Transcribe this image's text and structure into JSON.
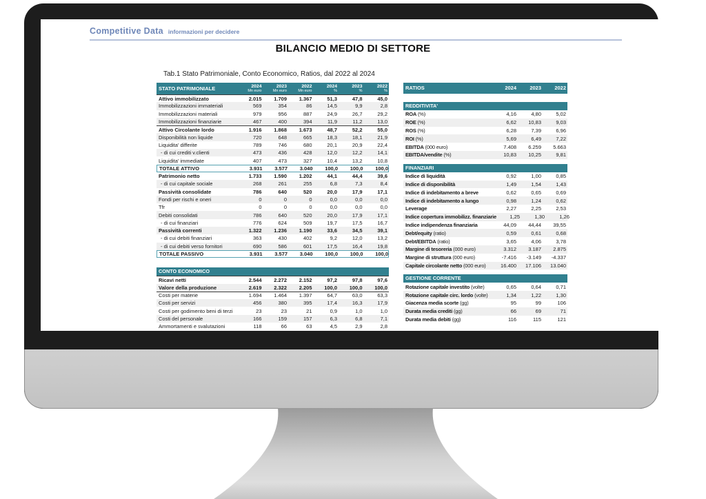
{
  "colors": {
    "accent_teal": "#31808F",
    "stripe": "#EFEFEF",
    "logo_blue": "#6F87B8",
    "bezel_black": "#1D1D1D",
    "chin_gray": "#C7C7C7",
    "total_border": "#55A1B1"
  },
  "logo": {
    "brand": "Competitive Data",
    "tagline": "informazioni per decidere"
  },
  "title": "BILANCIO MEDIO DI SETTORE",
  "subtitle": "Tab.1 Stato Patrimoniale, Conto Economico, Ratios, dal 2022 al 2024",
  "stato_patrimoniale": {
    "title": "STATO PATRIMONIALE",
    "columns": [
      {
        "year": "2024",
        "unit": "Mn euro"
      },
      {
        "year": "2023",
        "unit": "Mn euro"
      },
      {
        "year": "2022",
        "unit": "Mn euro"
      },
      {
        "year": "2024",
        "unit": "%"
      },
      {
        "year": "2023",
        "unit": "%"
      },
      {
        "year": "2022",
        "unit": "%"
      }
    ],
    "rows": [
      {
        "label": "Attivo immobilizzato",
        "b": true,
        "bt": true,
        "values": [
          "2.015",
          "1.709",
          "1.367",
          "51,3",
          "47,8",
          "45,0"
        ]
      },
      {
        "label": "Immobilizzazioni immateriali",
        "values": [
          "569",
          "354",
          "86",
          "14,5",
          "9,9",
          "2,8"
        ]
      },
      {
        "label": "Immobilizzazioni materiali",
        "values": [
          "979",
          "956",
          "887",
          "24,9",
          "26,7",
          "29,2"
        ]
      },
      {
        "label": "Immobilizzazioni finanziarie",
        "values": [
          "467",
          "400",
          "394",
          "11,9",
          "11,2",
          "13,0"
        ]
      },
      {
        "label": "Attivo Circolante lordo",
        "b": true,
        "bt": true,
        "values": [
          "1.916",
          "1.868",
          "1.673",
          "48,7",
          "52,2",
          "55,0"
        ]
      },
      {
        "label": "Disponibilità non liquide",
        "values": [
          "720",
          "648",
          "665",
          "18,3",
          "18,1",
          "21,9"
        ]
      },
      {
        "label": "Liquidita' differite",
        "values": [
          "789",
          "746",
          "680",
          "20,1",
          "20,9",
          "22,4"
        ]
      },
      {
        "label": "- di cui crediti v.clienti",
        "sub": true,
        "values": [
          "473",
          "436",
          "428",
          "12,0",
          "12,2",
          "14,1"
        ]
      },
      {
        "label": "Liquidita' immediate",
        "values": [
          "407",
          "473",
          "327",
          "10,4",
          "13,2",
          "10,8"
        ]
      },
      {
        "label": "TOTALE ATTIVO",
        "total": true,
        "values": [
          "3.931",
          "3.577",
          "3.040",
          "100,0",
          "100,0",
          "100,0"
        ]
      },
      {
        "label": "Patrimonio netto",
        "b": true,
        "values": [
          "1.733",
          "1.590",
          "1.202",
          "44,1",
          "44,4",
          "39,6"
        ]
      },
      {
        "label": "- di cui capitale sociale",
        "sub": true,
        "values": [
          "268",
          "261",
          "255",
          "6,8",
          "7,3",
          "8,4"
        ]
      },
      {
        "label": "Passività consolidate",
        "b": true,
        "values": [
          "786",
          "640",
          "520",
          "20,0",
          "17,9",
          "17,1"
        ]
      },
      {
        "label": "Fondi per rischi e oneri",
        "values": [
          "0",
          "0",
          "0",
          "0,0",
          "0,0",
          "0,0"
        ]
      },
      {
        "label": "Tfr",
        "values": [
          "0",
          "0",
          "0",
          "0,0",
          "0,0",
          "0,0"
        ]
      },
      {
        "label": "Debiti consolidati",
        "values": [
          "786",
          "640",
          "520",
          "20,0",
          "17,9",
          "17,1"
        ]
      },
      {
        "label": "- di cui finanziari",
        "sub": true,
        "values": [
          "776",
          "624",
          "509",
          "19,7",
          "17,5",
          "16,7"
        ]
      },
      {
        "label": "Passività correnti",
        "b": true,
        "values": [
          "1.322",
          "1.236",
          "1.190",
          "33,6",
          "34,5",
          "39,1"
        ]
      },
      {
        "label": "- di cui debiti finanziari",
        "sub": true,
        "values": [
          "363",
          "430",
          "402",
          "9,2",
          "12,0",
          "13,2"
        ]
      },
      {
        "label": "- di cui debiti verso fornitori",
        "sub": true,
        "values": [
          "690",
          "586",
          "601",
          "17,5",
          "16,4",
          "19,8"
        ]
      },
      {
        "label": "TOTALE PASSIVO",
        "total": true,
        "values": [
          "3.931",
          "3.577",
          "3.040",
          "100,0",
          "100,0",
          "100,0"
        ]
      }
    ]
  },
  "conto_economico": {
    "title": "CONTO ECONOMICO",
    "rows": [
      {
        "label": "Ricavi netti",
        "b": true,
        "bt": true,
        "values": [
          "2.544",
          "2.272",
          "2.152",
          "97,2",
          "97,8",
          "97,6"
        ]
      },
      {
        "label": "Valore della produzione",
        "b": true,
        "values": [
          "2.619",
          "2.322",
          "2.205",
          "100,0",
          "100,0",
          "100,0"
        ]
      },
      {
        "label": "Costi per materie",
        "bt": true,
        "values": [
          "1.694",
          "1.464",
          "1.397",
          "64,7",
          "63,0",
          "63,3"
        ]
      },
      {
        "label": "Costi per servizi",
        "values": [
          "456",
          "380",
          "395",
          "17,4",
          "16,3",
          "17,9"
        ]
      },
      {
        "label": "Costi per godimento beni di terzi",
        "values": [
          "23",
          "23",
          "21",
          "0,9",
          "1,0",
          "1,0"
        ]
      },
      {
        "label": "Costi del personale",
        "values": [
          "166",
          "159",
          "157",
          "6,3",
          "6,8",
          "7,1"
        ]
      },
      {
        "label": "Ammortamenti e svalutazioni",
        "values": [
          "118",
          "66",
          "63",
          "4,5",
          "2,9",
          "2,8"
        ]
      }
    ]
  },
  "ratios": {
    "title": "RATIOS",
    "years": [
      "2024",
      "2023",
      "2022"
    ],
    "sections": [
      {
        "title": "REDDITIVITA'",
        "rows": [
          {
            "label": "ROA",
            "suffix": "(%)",
            "values": [
              "4,16",
              "4,80",
              "5,02"
            ]
          },
          {
            "label": "ROE",
            "suffix": "(%)",
            "values": [
              "6,62",
              "10,83",
              "9,03"
            ]
          },
          {
            "label": "ROS",
            "suffix": "(%)",
            "values": [
              "6,28",
              "7,39",
              "6,96"
            ]
          },
          {
            "label": "ROI",
            "suffix": "(%)",
            "values": [
              "5,69",
              "6,49",
              "7,22"
            ]
          },
          {
            "label": "EBITDA",
            "suffix": "(000 euro)",
            "values": [
              "7.408",
              "6.259",
              "5.663"
            ]
          },
          {
            "label": "EBITDA/vendite",
            "suffix": "(%)",
            "values": [
              "10,83",
              "10,25",
              "9,81"
            ]
          }
        ]
      },
      {
        "title": "FINANZIARI",
        "rows": [
          {
            "label": "Indice di liquidità",
            "values": [
              "0,92",
              "1,00",
              "0,85"
            ]
          },
          {
            "label": "Indice di disponibilità",
            "values": [
              "1,49",
              "1,54",
              "1,43"
            ]
          },
          {
            "label": "Indice di indebitamento a breve",
            "values": [
              "0,62",
              "0,65",
              "0,69"
            ]
          },
          {
            "label": "Indice di indebitamento a lungo",
            "values": [
              "0,98",
              "1,24",
              "0,62"
            ]
          },
          {
            "label": "Leverage",
            "values": [
              "2,27",
              "2,25",
              "2,53"
            ]
          },
          {
            "label": "Indice copertura immobilizz. finanziarie",
            "values": [
              "1,25",
              "1,30",
              "1,26"
            ]
          },
          {
            "label": "Indice indipendenza finanziaria",
            "values": [
              "44,09",
              "44,44",
              "39,55"
            ]
          },
          {
            "label": "Debt/equity",
            "suffix": "(ratio)",
            "values": [
              "0,59",
              "0,61",
              "0,68"
            ]
          },
          {
            "label": "Debt/EBITDA",
            "suffix": "(ratio)",
            "values": [
              "3,65",
              "4,06",
              "3,78"
            ]
          },
          {
            "label": "Margine di tesoreria",
            "suffix": "(000 euro)",
            "values": [
              "3.312",
              "3.187",
              "2.875"
            ]
          },
          {
            "label": "Margine di struttura",
            "suffix": "(000 euro)",
            "values": [
              "-7.416",
              "-3.149",
              "-4.337"
            ]
          },
          {
            "label": "Capitale circolante netto",
            "suffix": "(000 euro)",
            "values": [
              "16.400",
              "17.106",
              "13.040"
            ]
          }
        ]
      },
      {
        "title": "GESTIONE CORRENTE",
        "rows": [
          {
            "label": "Rotazione capitale investito",
            "suffix": "(volte)",
            "values": [
              "0,65",
              "0,64",
              "0,71"
            ]
          },
          {
            "label": "Rotazione capitale circ. lordo",
            "suffix": "(volte)",
            "values": [
              "1,34",
              "1,22",
              "1,30"
            ]
          },
          {
            "label": "Giacenza media scorte",
            "suffix": "(gg)",
            "values": [
              "95",
              "99",
              "106"
            ]
          },
          {
            "label": "Durata media crediti",
            "suffix": "(gg)",
            "values": [
              "66",
              "69",
              "71"
            ]
          },
          {
            "label": "Durata media debiti",
            "suffix": "(gg)",
            "values": [
              "116",
              "115",
              "121"
            ]
          }
        ]
      }
    ]
  }
}
